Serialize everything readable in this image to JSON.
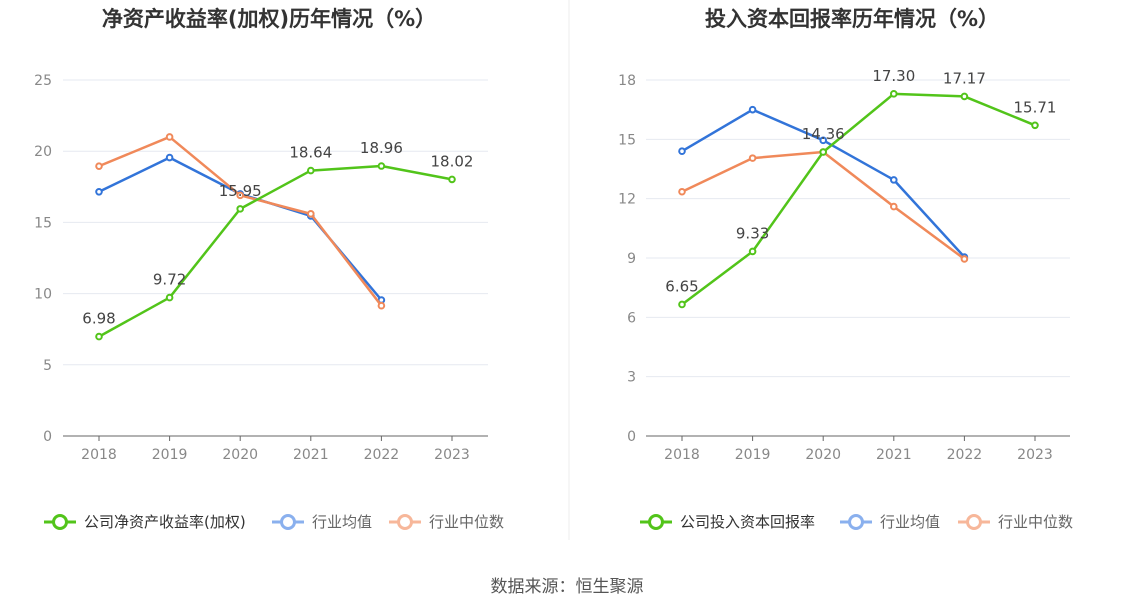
{
  "colors": {
    "company": "#52c41a",
    "industry_avg": "#3274d9",
    "industry_median": "#f0895a",
    "legend_avg": "#8ab0ee",
    "legend_median": "#f7b79a"
  },
  "footer": "数据来源：恒生聚源",
  "chart_data": [
    {
      "type": "line",
      "title": "净资产收益率(加权)历年情况（%）",
      "categories": [
        "2018",
        "2019",
        "2020",
        "2021",
        "2022",
        "2023"
      ],
      "ylim": [
        0,
        25
      ],
      "yticks": [
        "0",
        "5",
        "10",
        "15",
        "20",
        "25"
      ],
      "grid": true,
      "legend_position": "bottom",
      "series": [
        {
          "name": "公司净资产收益率(加权)",
          "values": [
            6.98,
            9.72,
            15.95,
            18.64,
            18.96,
            18.02
          ],
          "labels": [
            "6.98",
            "9.72",
            "15.95",
            "18.64",
            "18.96",
            "18.02"
          ]
        },
        {
          "name": "行业均值",
          "values": [
            17.15,
            19.55,
            17.0,
            15.45,
            9.55,
            null
          ]
        },
        {
          "name": "行业中位数",
          "values": [
            18.95,
            21.0,
            16.9,
            15.6,
            9.15,
            null
          ]
        }
      ]
    },
    {
      "type": "line",
      "title": "投入资本回报率历年情况（%）",
      "categories": [
        "2018",
        "2019",
        "2020",
        "2021",
        "2022",
        "2023"
      ],
      "ylim": [
        0,
        18
      ],
      "yticks": [
        "0",
        "3",
        "6",
        "9",
        "12",
        "15",
        "18"
      ],
      "grid": true,
      "legend_position": "bottom",
      "series": [
        {
          "name": "公司投入资本回报率",
          "values": [
            6.65,
            9.33,
            14.36,
            17.3,
            17.17,
            15.71
          ],
          "labels": [
            "6.65",
            "9.33",
            "14.36",
            "17.30",
            "17.17",
            "15.71"
          ]
        },
        {
          "name": "行业均值",
          "values": [
            14.4,
            16.5,
            14.95,
            12.95,
            9.05,
            null
          ]
        },
        {
          "name": "行业中位数",
          "values": [
            12.35,
            14.05,
            14.36,
            11.6,
            8.95,
            null
          ]
        }
      ]
    }
  ]
}
